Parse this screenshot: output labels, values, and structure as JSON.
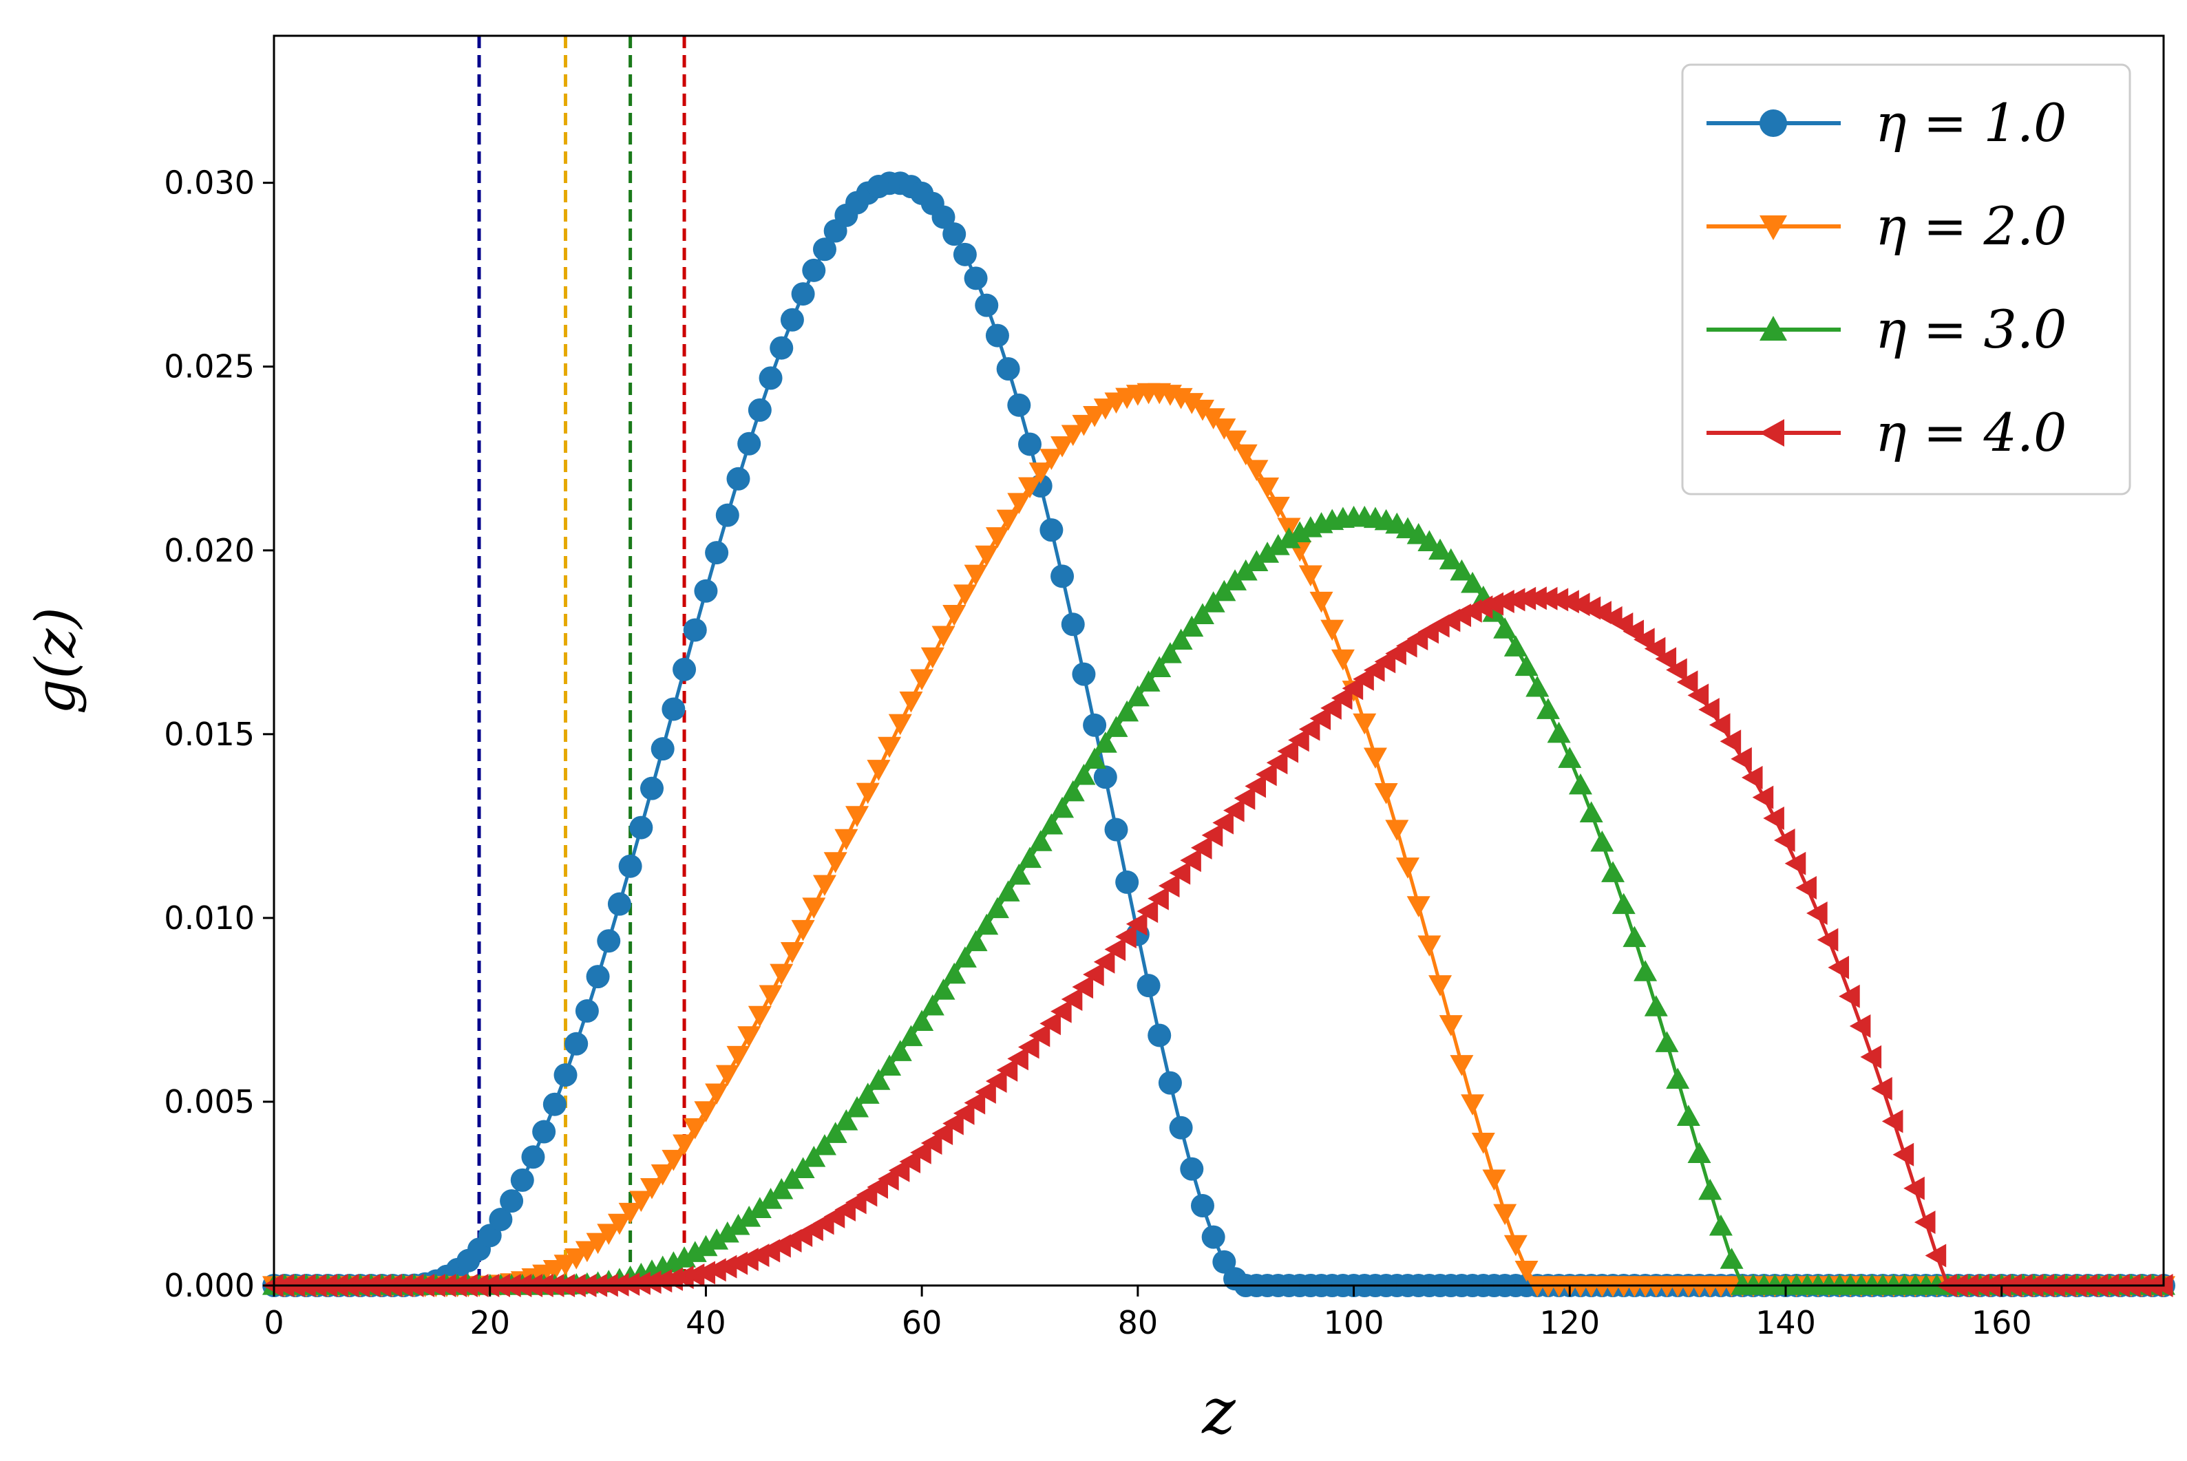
{
  "chart_data": {
    "type": "line",
    "title": "",
    "xlabel": "z",
    "ylabel": "g(z)",
    "xlim": [
      0,
      175
    ],
    "ylim": [
      0,
      0.034
    ],
    "x_ticks": [
      0,
      20,
      40,
      60,
      80,
      100,
      120,
      140,
      160
    ],
    "y_ticks": [
      0.0,
      0.005,
      0.01,
      0.015,
      0.02,
      0.025,
      0.03
    ],
    "x_tick_labels": [
      "0",
      "20",
      "40",
      "60",
      "80",
      "100",
      "120",
      "140",
      "160"
    ],
    "y_tick_labels": [
      "0.000",
      "0.005",
      "0.010",
      "0.015",
      "0.020",
      "0.025",
      "0.030"
    ],
    "grid": false,
    "legend_position": "top-right",
    "series": [
      {
        "name": "η = 1.0",
        "legend_label": "η = 1.0",
        "color": "#1f77b4",
        "marker": "circle",
        "x_range": [
          0,
          175
        ],
        "x_step": 1,
        "peak_x": 57.5,
        "peak_y": 0.03,
        "support": [
          12,
          90
        ],
        "vline_x": 19,
        "vline_color": "#00008b"
      },
      {
        "name": "η = 2.0",
        "legend_label": "η = 2.0",
        "color": "#ff7f0e",
        "marker": "triangle-down",
        "x_range": [
          0,
          175
        ],
        "x_step": 1,
        "peak_x": 81.5,
        "peak_y": 0.0243,
        "support": [
          18,
          117
        ],
        "vline_x": 27,
        "vline_color": "#e6a800"
      },
      {
        "name": "η = 3.0",
        "legend_label": "η = 3.0",
        "color": "#2ca02c",
        "marker": "triangle-up",
        "x_range": [
          0,
          175
        ],
        "x_step": 1,
        "peak_x": 100.5,
        "peak_y": 0.0209,
        "support": [
          25,
          136
        ],
        "vline_x": 33,
        "vline_color": "#1a7a1a"
      },
      {
        "name": "η = 4.0",
        "legend_label": "η = 4.0",
        "color": "#d62728",
        "marker": "triangle-left",
        "x_range": [
          0,
          175
        ],
        "x_step": 1,
        "peak_x": 117,
        "peak_y": 0.0187,
        "support": [
          28,
          155
        ],
        "vline_x": 38,
        "vline_color": "#cc0000"
      }
    ]
  }
}
